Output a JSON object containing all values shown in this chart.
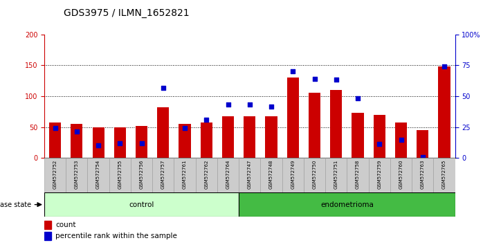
{
  "title": "GDS3975 / ILMN_1652821",
  "samples": [
    "GSM572752",
    "GSM572753",
    "GSM572754",
    "GSM572755",
    "GSM572756",
    "GSM572757",
    "GSM572761",
    "GSM572762",
    "GSM572764",
    "GSM572747",
    "GSM572748",
    "GSM572749",
    "GSM572750",
    "GSM572751",
    "GSM572758",
    "GSM572759",
    "GSM572760",
    "GSM572763",
    "GSM572765"
  ],
  "counts": [
    57,
    55,
    50,
    50,
    52,
    82,
    55,
    57,
    68,
    68,
    68,
    130,
    105,
    110,
    73,
    70,
    57,
    45,
    148
  ],
  "pct_left_vals": [
    48,
    43,
    20,
    24,
    24,
    113,
    48,
    62,
    87,
    87,
    83,
    140,
    128,
    127,
    97,
    23,
    30,
    2,
    148
  ],
  "control_count": 9,
  "endometrioma_count": 10,
  "bar_color": "#cc0000",
  "dot_color": "#0000cc",
  "control_bg": "#ccffcc",
  "endometrioma_bg": "#44bb44",
  "label_bg": "#cccccc",
  "ylim": [
    0,
    200
  ],
  "yticks_left": [
    0,
    50,
    100,
    150,
    200
  ],
  "yticks_right": [
    0,
    50,
    100,
    150,
    200
  ],
  "ytick_labels_right": [
    "0",
    "25",
    "50",
    "75",
    "100%"
  ],
  "grid_lines": [
    50,
    100,
    150
  ],
  "title_fontsize": 10,
  "tick_fontsize": 7,
  "legend_count_label": "count",
  "legend_pct_label": "percentile rank within the sample",
  "left_axis_color": "#cc0000",
  "right_axis_color": "#0000cc"
}
